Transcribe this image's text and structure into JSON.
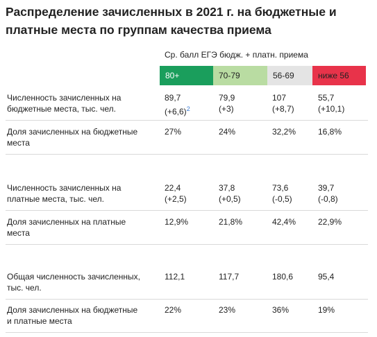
{
  "title": "Распределение зачисленных в 2021 г. на бюджетные и платные места по группам качества приема",
  "subheader": "Ср. балл ЕГЭ бюдж. + платн. приема",
  "groups": [
    "80+",
    "70-79",
    "56-69",
    "ниже 56"
  ],
  "rows": [
    {
      "label": [
        "Численность зачисленных на",
        "бюджетные места, тыс. чел."
      ],
      "cells": [
        {
          "value": "89,7",
          "change": "(+6,6)",
          "note": "2"
        },
        {
          "value": "79,9",
          "change": "(+3)"
        },
        {
          "value": "107",
          "change": "(+8,7)"
        },
        {
          "value": "55,7",
          "change": "(+10,1)"
        }
      ]
    },
    {
      "label": [
        "Доля зачисленных на бюджетные",
        "места"
      ],
      "cells": [
        {
          "value": "27%"
        },
        {
          "value": "24%"
        },
        {
          "value": "32,2%"
        },
        {
          "value": "16,8%"
        }
      ]
    },
    {
      "label": [
        "Численность зачисленных на",
        "платные места, тыс. чел."
      ],
      "cells": [
        {
          "value": "22,4",
          "change": "(+2,5)"
        },
        {
          "value": "37,8",
          "change": "(+0,5)"
        },
        {
          "value": "73,6",
          "change": "(-0,5)"
        },
        {
          "value": "39,7",
          "change": "(-0,8)"
        }
      ]
    },
    {
      "label": [
        "Доля зачисленных на платные",
        "места"
      ],
      "cells": [
        {
          "value": "12,9%"
        },
        {
          "value": "21,8%"
        },
        {
          "value": "42,4%"
        },
        {
          "value": "22,9%"
        }
      ]
    },
    {
      "label": [
        "Общая численность зачисленных,",
        "тыс. чел."
      ],
      "cells": [
        {
          "value": "112,1"
        },
        {
          "value": "117,7"
        },
        {
          "value": "180,6"
        },
        {
          "value": "95,4"
        }
      ]
    },
    {
      "label": [
        "Доля зачисленных на бюджетные",
        "и платные места"
      ],
      "cells": [
        {
          "value": "22%"
        },
        {
          "value": "23%"
        },
        {
          "value": "36%"
        },
        {
          "value": "19%"
        }
      ]
    }
  ]
}
